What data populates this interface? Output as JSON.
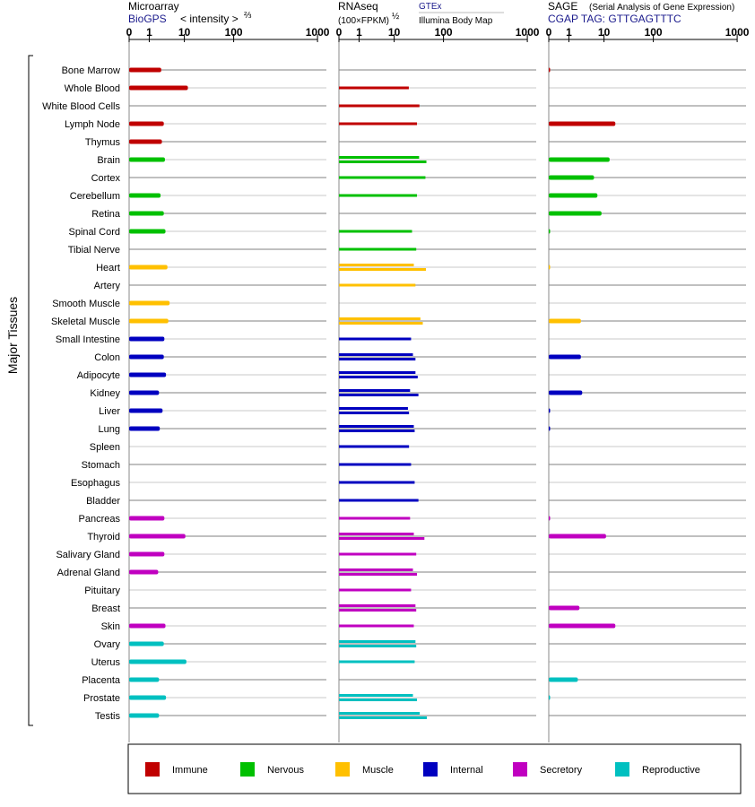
{
  "panels": [
    {
      "id": "microarray",
      "title": "Microarray",
      "subtitle_link": "BioGPS",
      "subtitle_text": "< intensity >",
      "subtitle_sup": "⅔",
      "tick_labels": [
        "0",
        "1",
        "10",
        "100",
        "1000"
      ]
    },
    {
      "id": "rnaseq",
      "title": "RNAseq",
      "subtitle_text": "(100×FPKM)",
      "subtitle_sup": "½",
      "extra_link": "GTEx",
      "extra_text": "Illumina Body Map",
      "tick_labels": [
        "0",
        "1",
        "10",
        "100",
        "1000"
      ]
    },
    {
      "id": "sage",
      "title": "SAGE",
      "title_note": "(Serial Analysis of Gene Expression)",
      "subtitle_link": "CGAP TAG: GTTGAGTTTC",
      "tick_labels": [
        "0",
        "1",
        "10",
        "100",
        "1000"
      ]
    }
  ],
  "y_axis_label": "Major Tissues",
  "categories": {
    "Immune": "#c00000",
    "Nervous": "#00c000",
    "Muscle": "#ffc000",
    "Internal": "#0000c0",
    "Secretory": "#c000c0",
    "Reproductive": "#00c0c0"
  },
  "legend": [
    "Immune",
    "Nervous",
    "Muscle",
    "Internal",
    "Secretory",
    "Reproductive"
  ],
  "chart_data": {
    "type": "bar",
    "x_scale": "log-like (0, 1, 10, 100, 1000)",
    "xlim": [
      0,
      1000
    ],
    "tissues": [
      {
        "name": "Bone Marrow",
        "group": "Immune",
        "microarray": [
          2.2
        ],
        "rnaseq": [],
        "sage": [
          0.05
        ]
      },
      {
        "name": "Whole Blood",
        "group": "Immune",
        "microarray": [
          11.8
        ],
        "rnaseq": [
          19.8
        ],
        "sage": []
      },
      {
        "name": "White Blood Cells",
        "group": "Immune",
        "microarray": [],
        "rnaseq": [
          32.5
        ],
        "sage": []
      },
      {
        "name": "Lymph Node",
        "group": "Immune",
        "microarray": [
          2.6
        ],
        "rnaseq": [
          29.0
        ],
        "sage": [
          17.0
        ]
      },
      {
        "name": "Thymus",
        "group": "Immune",
        "microarray": [
          2.3
        ],
        "rnaseq": [],
        "sage": []
      },
      {
        "name": "Brain",
        "group": "Nervous",
        "microarray": [
          2.8
        ],
        "rnaseq": [
          32.0,
          45.0
        ],
        "sage": [
          13.0
        ]
      },
      {
        "name": "Cortex",
        "group": "Nervous",
        "microarray": [],
        "rnaseq": [
          43.0
        ],
        "sage": [
          5.2
        ]
      },
      {
        "name": "Cerebellum",
        "group": "Nervous",
        "microarray": [
          2.1
        ],
        "rnaseq": [
          29.0
        ],
        "sage": [
          6.5
        ]
      },
      {
        "name": "Retina",
        "group": "Nervous",
        "microarray": [
          2.6
        ],
        "rnaseq": [],
        "sage": [
          8.5
        ]
      },
      {
        "name": "Spinal Cord",
        "group": "Nervous",
        "microarray": [
          2.9
        ],
        "rnaseq": [
          23.0
        ],
        "sage": [
          0.05
        ]
      },
      {
        "name": "Tibial Nerve",
        "group": "Nervous",
        "microarray": [],
        "rnaseq": [
          28.0
        ],
        "sage": []
      },
      {
        "name": "Heart",
        "group": "Muscle",
        "microarray": [
          3.3
        ],
        "rnaseq": [
          25.0,
          44.0
        ],
        "sage": [
          0.05
        ]
      },
      {
        "name": "Artery",
        "group": "Muscle",
        "microarray": [],
        "rnaseq": [
          27.0
        ],
        "sage": []
      },
      {
        "name": "Smooth Muscle",
        "group": "Muscle",
        "microarray": [
          3.8
        ],
        "rnaseq": [],
        "sage": []
      },
      {
        "name": "Skeletal Muscle",
        "group": "Muscle",
        "microarray": [
          3.5
        ],
        "rnaseq": [
          34.0,
          38.0
        ],
        "sage": [
          2.2
        ]
      },
      {
        "name": "Small Intestine",
        "group": "Internal",
        "microarray": [
          2.7
        ],
        "rnaseq": [
          22.0
        ],
        "sage": []
      },
      {
        "name": "Colon",
        "group": "Internal",
        "microarray": [
          2.6
        ],
        "rnaseq": [
          24.0,
          27.0
        ],
        "sage": [
          2.2
        ]
      },
      {
        "name": "Adipocyte",
        "group": "Internal",
        "microarray": [
          3.0
        ],
        "rnaseq": [
          27.0,
          30.0
        ],
        "sage": []
      },
      {
        "name": "Kidney",
        "group": "Internal",
        "microarray": [
          1.9
        ],
        "rnaseq": [
          21.0,
          31.0
        ],
        "sage": [
          2.4
        ]
      },
      {
        "name": "Liver",
        "group": "Internal",
        "microarray": [
          2.4
        ],
        "rnaseq": [
          19.0,
          20.0
        ],
        "sage": [
          0.05
        ]
      },
      {
        "name": "Lung",
        "group": "Internal",
        "microarray": [
          2.0
        ],
        "rnaseq": [
          25.0,
          26.0
        ],
        "sage": [
          0.05
        ]
      },
      {
        "name": "Spleen",
        "group": "Internal",
        "microarray": [],
        "rnaseq": [
          20.0
        ],
        "sage": []
      },
      {
        "name": "Stomach",
        "group": "Internal",
        "microarray": [],
        "rnaseq": [
          22.0
        ],
        "sage": []
      },
      {
        "name": "Esophagus",
        "group": "Internal",
        "microarray": [],
        "rnaseq": [
          26.0
        ],
        "sage": []
      },
      {
        "name": "Bladder",
        "group": "Internal",
        "microarray": [],
        "rnaseq": [
          31.0
        ],
        "sage": []
      },
      {
        "name": "Pancreas",
        "group": "Secretory",
        "microarray": [
          2.7
        ],
        "rnaseq": [
          21.0
        ],
        "sage": [
          0.05
        ]
      },
      {
        "name": "Thyroid",
        "group": "Secretory",
        "microarray": [
          10.5
        ],
        "rnaseq": [
          25.0,
          41.0
        ],
        "sage": [
          11.0
        ]
      },
      {
        "name": "Salivary Gland",
        "group": "Secretory",
        "microarray": [
          2.7
        ],
        "rnaseq": [
          28.0
        ],
        "sage": []
      },
      {
        "name": "Adrenal Gland",
        "group": "Secretory",
        "microarray": [
          1.8
        ],
        "rnaseq": [
          24.0,
          29.0
        ],
        "sage": []
      },
      {
        "name": "Pituitary",
        "group": "Secretory",
        "microarray": [],
        "rnaseq": [
          22.0
        ],
        "sage": []
      },
      {
        "name": "Breast",
        "group": "Secretory",
        "microarray": [],
        "rnaseq": [
          27.0,
          28.0
        ],
        "sage": [
          2.0
        ]
      },
      {
        "name": "Skin",
        "group": "Secretory",
        "microarray": [
          2.9
        ],
        "rnaseq": [
          25.0
        ],
        "sage": [
          17.0
        ]
      },
      {
        "name": "Ovary",
        "group": "Reproductive",
        "microarray": [
          2.6
        ],
        "rnaseq": [
          27.0,
          28.0
        ],
        "sage": []
      },
      {
        "name": "Uterus",
        "group": "Reproductive",
        "microarray": [
          11.0
        ],
        "rnaseq": [
          26.0
        ],
        "sage": []
      },
      {
        "name": "Placenta",
        "group": "Reproductive",
        "microarray": [
          1.9
        ],
        "rnaseq": [],
        "sage": [
          1.8
        ]
      },
      {
        "name": "Prostate",
        "group": "Reproductive",
        "microarray": [
          3.0
        ],
        "rnaseq": [
          24.0,
          29.0
        ],
        "sage": [
          0.05
        ]
      },
      {
        "name": "Testis",
        "group": "Reproductive",
        "microarray": [
          1.9
        ],
        "rnaseq": [
          33.0,
          46.0
        ],
        "sage": []
      }
    ]
  }
}
